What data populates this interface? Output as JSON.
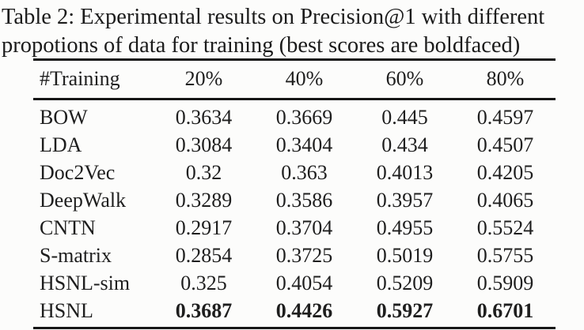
{
  "caption": {
    "line1": "Table 2: Experimental results on Precision@1 with different",
    "line2": "propotions of data for training (best scores are boldfaced)"
  },
  "chart_data": {
    "type": "table",
    "title": "Table 2: Experimental results on Precision@1 with different propotions of data for training (best scores are boldfaced)",
    "columns": [
      "#Training",
      "20%",
      "40%",
      "60%",
      "80%"
    ],
    "rows": [
      {
        "method": "BOW",
        "values": [
          "0.3634",
          "0.3669",
          "0.445",
          "0.4597"
        ],
        "bold": false
      },
      {
        "method": "LDA",
        "values": [
          "0.3084",
          "0.3404",
          "0.434",
          "0.4507"
        ],
        "bold": false
      },
      {
        "method": "Doc2Vec",
        "values": [
          "0.32",
          "0.363",
          "0.4013",
          "0.4205"
        ],
        "bold": false
      },
      {
        "method": "DeepWalk",
        "values": [
          "0.3289",
          "0.3586",
          "0.3957",
          "0.4065"
        ],
        "bold": false
      },
      {
        "method": "CNTN",
        "values": [
          "0.2917",
          "0.3704",
          "0.4955",
          "0.5524"
        ],
        "bold": false
      },
      {
        "method": "S-matrix",
        "values": [
          "0.2854",
          "0.3725",
          "0.5019",
          "0.5755"
        ],
        "bold": false
      },
      {
        "method": "HSNL-sim",
        "values": [
          "0.325",
          "0.4054",
          "0.5209",
          "0.5909"
        ],
        "bold": false
      },
      {
        "method": "HSNL",
        "values": [
          "0.3687",
          "0.4426",
          "0.5927",
          "0.6701"
        ],
        "bold": true
      }
    ]
  },
  "colors": {
    "background": "#fcfcfb",
    "text": "#1b1b1b",
    "rule": "#161616"
  }
}
